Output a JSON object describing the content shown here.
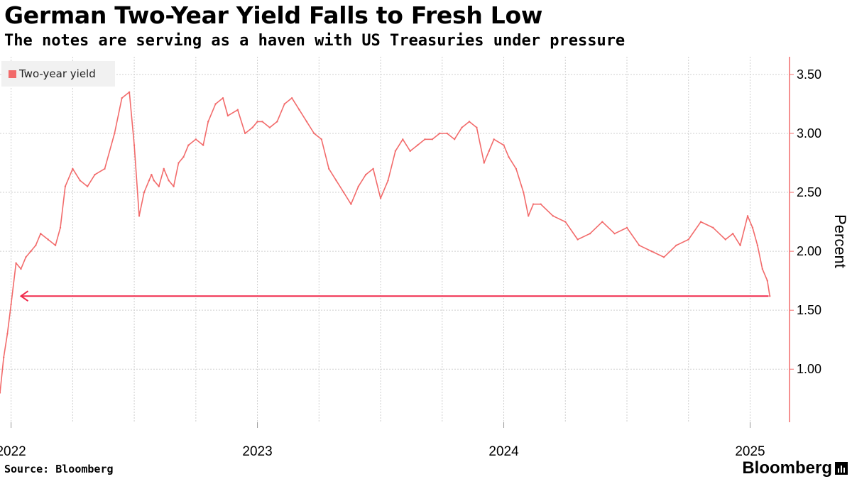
{
  "colors": {
    "series": "#f26b6b",
    "axis": "#f26b6b",
    "arrow": "#f0284a",
    "grid": "#cfcfcf"
  },
  "chart_data": {
    "type": "line",
    "title": "German Two-Year Yield Falls to Fresh Low",
    "subtitle": "The notes are serving as a haven with US Treasuries under pressure",
    "legend": [
      "Two-year yield"
    ],
    "legend_position": "top-left",
    "ylabel": "Percent",
    "ylim": [
      0.55,
      3.65
    ],
    "yticks": [
      1.0,
      1.5,
      2.0,
      2.5,
      3.0,
      3.5
    ],
    "ytick_labels": [
      "1.00",
      "1.50",
      "2.00",
      "2.50",
      "3.00",
      "3.50"
    ],
    "xlim": [
      2021.955,
      2025.16
    ],
    "xticks": [
      2022.0,
      2023.0,
      2024.0,
      2025.0
    ],
    "xtick_labels": [
      "2022",
      "2023",
      "2024",
      "2025"
    ],
    "grid": true,
    "annotation": {
      "type": "arrow",
      "y": 1.62,
      "x_from": 2025.075,
      "x_to": 2022.04
    },
    "series": [
      {
        "name": "Two-year yield",
        "x": [
          2021.955,
          2021.97,
          2021.985,
          2022.0,
          2022.02,
          2022.04,
          2022.06,
          2022.08,
          2022.1,
          2022.12,
          2022.15,
          2022.18,
          2022.2,
          2022.22,
          2022.25,
          2022.28,
          2022.31,
          2022.34,
          2022.38,
          2022.42,
          2022.45,
          2022.48,
          2022.5,
          2022.52,
          2022.54,
          2022.56,
          2022.57,
          2022.58,
          2022.6,
          2022.62,
          2022.64,
          2022.66,
          2022.68,
          2022.7,
          2022.72,
          2022.75,
          2022.78,
          2022.8,
          2022.83,
          2022.86,
          2022.88,
          2022.92,
          2022.95,
          2022.98,
          2023.0,
          2023.02,
          2023.05,
          2023.08,
          2023.11,
          2023.14,
          2023.17,
          2023.2,
          2023.23,
          2023.26,
          2023.29,
          2023.32,
          2023.35,
          2023.38,
          2023.41,
          2023.44,
          2023.47,
          2023.5,
          2023.53,
          2023.56,
          2023.59,
          2023.62,
          2023.65,
          2023.68,
          2023.71,
          2023.74,
          2023.77,
          2023.8,
          2023.83,
          2023.86,
          2023.89,
          2023.92,
          2023.94,
          2023.96,
          2024.0,
          2024.02,
          2024.05,
          2024.08,
          2024.1,
          2024.12,
          2024.15,
          2024.2,
          2024.25,
          2024.3,
          2024.35,
          2024.4,
          2024.45,
          2024.5,
          2024.55,
          2024.6,
          2024.65,
          2024.7,
          2024.75,
          2024.8,
          2024.85,
          2024.9,
          2024.93,
          2024.96,
          2024.99,
          2025.01,
          2025.03,
          2025.05,
          2025.07,
          2025.08
        ],
        "values": [
          0.8,
          1.1,
          1.3,
          1.55,
          1.9,
          1.85,
          1.95,
          2.0,
          2.05,
          2.15,
          2.1,
          2.05,
          2.2,
          2.55,
          2.7,
          2.6,
          2.55,
          2.65,
          2.7,
          3.0,
          3.3,
          3.35,
          2.9,
          2.3,
          2.5,
          2.6,
          2.65,
          2.6,
          2.55,
          2.7,
          2.6,
          2.55,
          2.75,
          2.8,
          2.9,
          2.95,
          2.9,
          3.1,
          3.25,
          3.3,
          3.15,
          3.2,
          3.0,
          3.05,
          3.1,
          3.1,
          3.05,
          3.1,
          3.25,
          3.3,
          3.2,
          3.1,
          3.0,
          2.95,
          2.7,
          2.6,
          2.5,
          2.4,
          2.55,
          2.65,
          2.7,
          2.45,
          2.6,
          2.85,
          2.95,
          2.85,
          2.9,
          2.95,
          2.95,
          3.0,
          3.0,
          2.95,
          3.05,
          3.1,
          3.05,
          2.75,
          2.85,
          2.95,
          2.9,
          2.8,
          2.7,
          2.5,
          2.3,
          2.4,
          2.4,
          2.3,
          2.25,
          2.1,
          2.15,
          2.25,
          2.15,
          2.2,
          2.05,
          2.0,
          1.95,
          2.05,
          2.1,
          2.25,
          2.2,
          2.1,
          2.15,
          2.05,
          2.3,
          2.2,
          2.05,
          1.85,
          1.75,
          1.62
        ]
      }
    ]
  },
  "footer": {
    "source": "Source: Bloomberg",
    "brand": "Bloomberg",
    "brand_icon": "bloomberg-chart-icon"
  }
}
